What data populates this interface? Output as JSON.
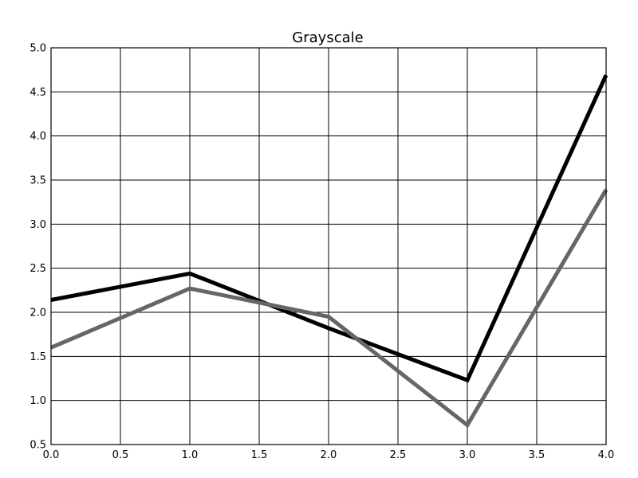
{
  "chart_data": {
    "type": "line",
    "title": "Grayscale",
    "xlabel": "",
    "ylabel": "",
    "xlim": [
      0,
      4
    ],
    "ylim": [
      0.5,
      5
    ],
    "x_ticks": [
      "0.0",
      "0.5",
      "1.0",
      "1.5",
      "2.0",
      "2.5",
      "3.0",
      "3.5",
      "4.0"
    ],
    "y_ticks": [
      "0.5",
      "1.0",
      "1.5",
      "2.0",
      "2.5",
      "3.0",
      "3.5",
      "4.0",
      "4.5",
      "5.0"
    ],
    "grid": true,
    "x": [
      0,
      1,
      2,
      3,
      4
    ],
    "series": [
      {
        "color": "#000000",
        "values": [
          2.14,
          2.44,
          1.82,
          1.23,
          4.69
        ]
      },
      {
        "color": "#666666",
        "values": [
          1.6,
          2.27,
          1.95,
          0.72,
          3.39
        ]
      }
    ]
  }
}
